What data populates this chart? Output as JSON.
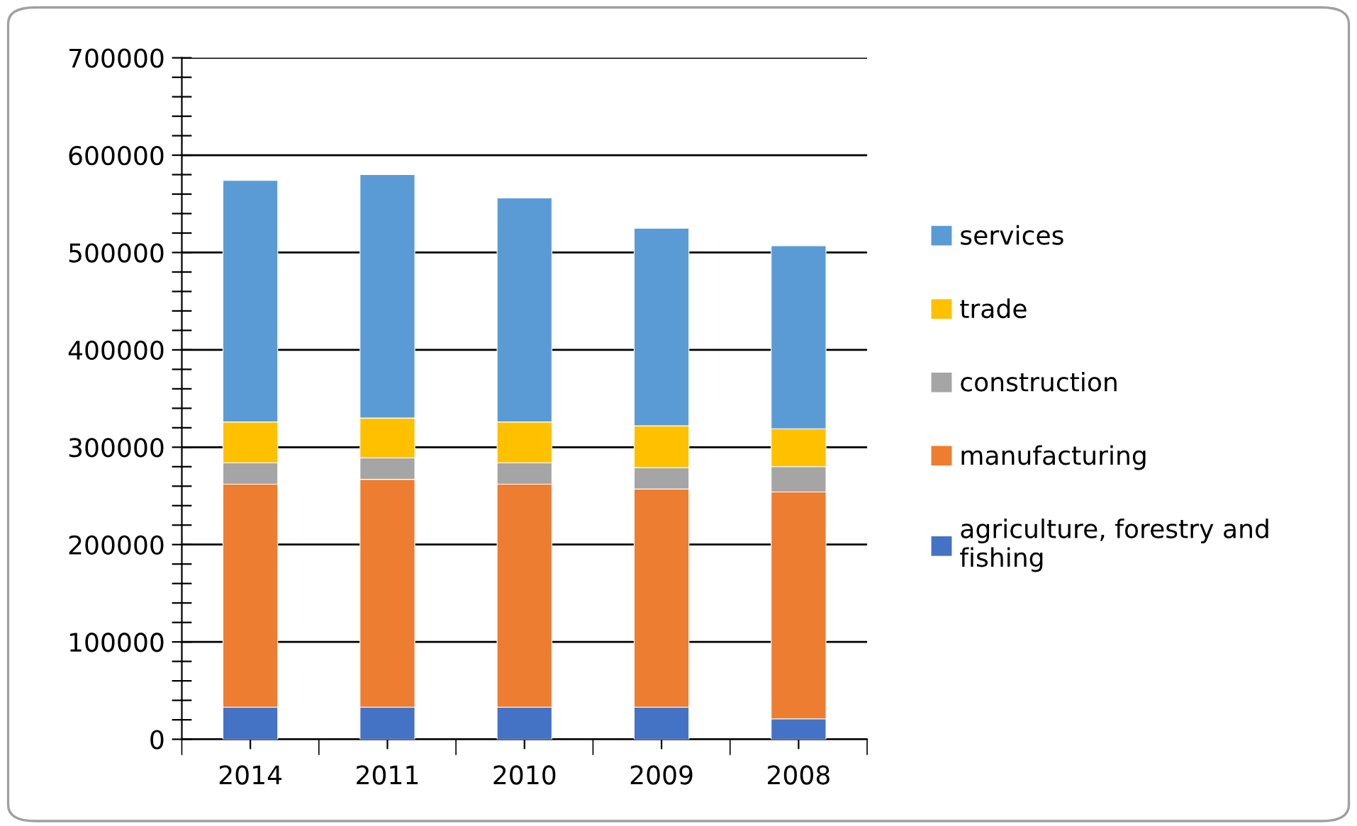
{
  "chart_data": {
    "type": "bar",
    "stacked": true,
    "categories": [
      "2014",
      "2011",
      "2010",
      "2009",
      "2008"
    ],
    "series": [
      {
        "name": "agriculture, forestry and\nfishing",
        "color": "#4472c4",
        "values": [
          33000,
          33000,
          33000,
          33000,
          21000
        ]
      },
      {
        "name": "manufacturing",
        "color": "#ed7d31",
        "values": [
          229000,
          234000,
          229000,
          224000,
          233000
        ]
      },
      {
        "name": "construction",
        "color": "#a5a5a5",
        "values": [
          22000,
          22000,
          22000,
          22000,
          26000
        ]
      },
      {
        "name": "trade",
        "color": "#ffc000",
        "values": [
          42000,
          41000,
          42000,
          43000,
          39000
        ]
      },
      {
        "name": "services",
        "color": "#5b9bd5",
        "values": [
          248000,
          250000,
          230000,
          203000,
          188000
        ]
      }
    ],
    "ylim": [
      0,
      700000
    ],
    "yticks": [
      0,
      {
        "value": 20000,
        "label": null
      },
      {
        "value": 40000,
        "label": null
      },
      {
        "value": 60000,
        "label": null
      },
      {
        "value": 80000,
        "label": null
      },
      100000,
      {
        "value": 120000,
        "label": null
      },
      {
        "value": 140000,
        "label": null
      },
      {
        "value": 160000,
        "label": null
      },
      {
        "value": 180000,
        "label": null
      },
      200000,
      {
        "value": 220000,
        "label": null
      },
      {
        "value": 240000,
        "label": null
      },
      {
        "value": 260000,
        "label": null
      },
      {
        "value": 280000,
        "label": null
      },
      300000,
      {
        "value": 320000,
        "label": null
      },
      {
        "value": 340000,
        "label": null
      },
      {
        "value": 360000,
        "label": null
      },
      {
        "value": 380000,
        "label": null
      },
      400000,
      {
        "value": 420000,
        "label": null
      },
      {
        "value": 440000,
        "label": null
      },
      {
        "value": 460000,
        "label": null
      },
      {
        "value": 480000,
        "label": null
      },
      500000,
      {
        "value": 520000,
        "label": null
      },
      {
        "value": 540000,
        "label": null
      },
      {
        "value": 560000,
        "label": null
      },
      {
        "value": 580000,
        "label": null
      },
      600000,
      {
        "value": 620000,
        "label": null
      },
      {
        "value": 640000,
        "label": null
      },
      {
        "value": 660000,
        "label": null
      },
      {
        "value": 680000,
        "label": null
      },
      700000
    ],
    "grid": "y",
    "legend": "right"
  }
}
